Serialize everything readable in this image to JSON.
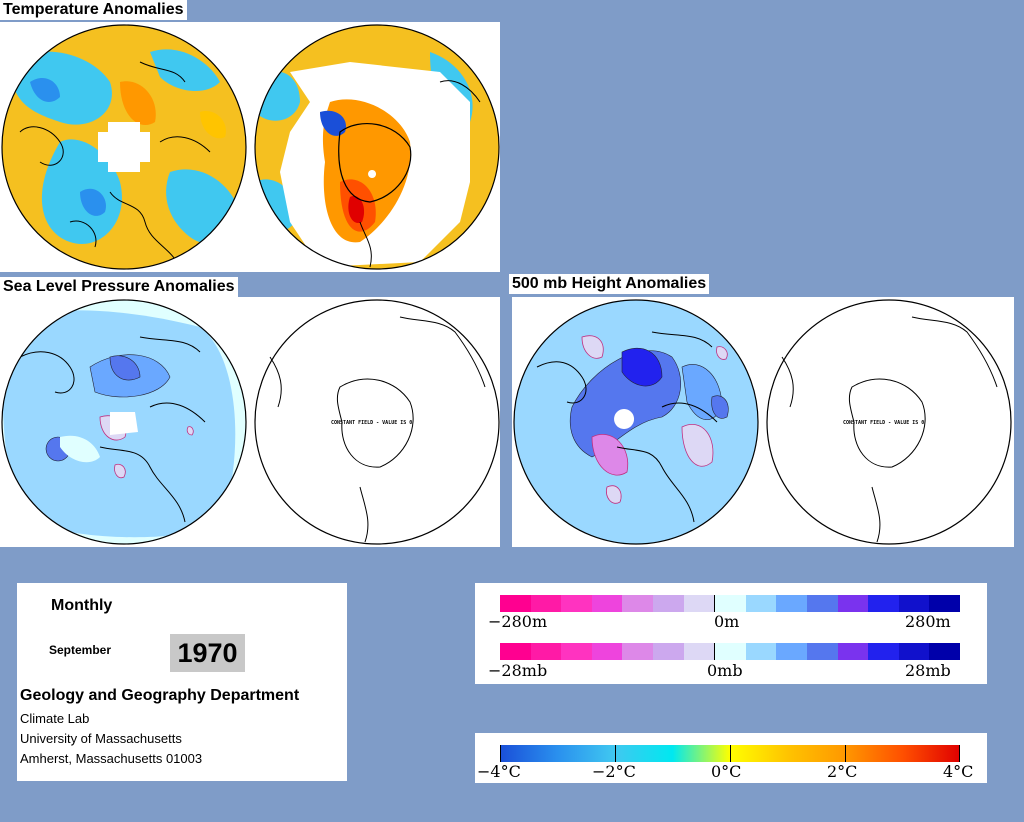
{
  "sections": {
    "temperature": "Temperature Anomalies",
    "slp": "Sea Level Pressure Anomalies",
    "height": "500 mb Height Anomalies"
  },
  "maps": {
    "constant_field": "CONSTANT FIELD - VALUE IS 0"
  },
  "info": {
    "period": "Monthly",
    "month": "September",
    "year": "1970",
    "department": "Geology and Geography Department",
    "lab": "Climate Lab",
    "university": "University of Massachusetts",
    "address": "Amherst, Massachusetts 01003"
  },
  "legends": {
    "height": {
      "min": "−280m",
      "mid": "0m",
      "max": "280m"
    },
    "pressure": {
      "min": "−28mb",
      "mid": "0mb",
      "max": "28mb"
    },
    "temperature": {
      "ticks": [
        "−4°C",
        "−2°C",
        "0°C",
        "2°C",
        "4°C"
      ]
    }
  },
  "colors": {
    "background": "#7f9cc8",
    "diverging_scale": [
      "#ff0090",
      "#ff1aa6",
      "#ff33c0",
      "#ee44dd",
      "#dd88e8",
      "#cca8ee",
      "#ddd8f5",
      "#e0ffff",
      "#9ad8ff",
      "#6aa8ff",
      "#5577ee",
      "#7a33ee",
      "#2222ee",
      "#1111cc",
      "#0000aa"
    ],
    "temperature_scale": [
      "#1a4fd8",
      "#2a90ee",
      "#40c8f0",
      "#00e8f0",
      "#ffff00",
      "#ffc400",
      "#ff9800",
      "#ff5000",
      "#e00000"
    ]
  }
}
